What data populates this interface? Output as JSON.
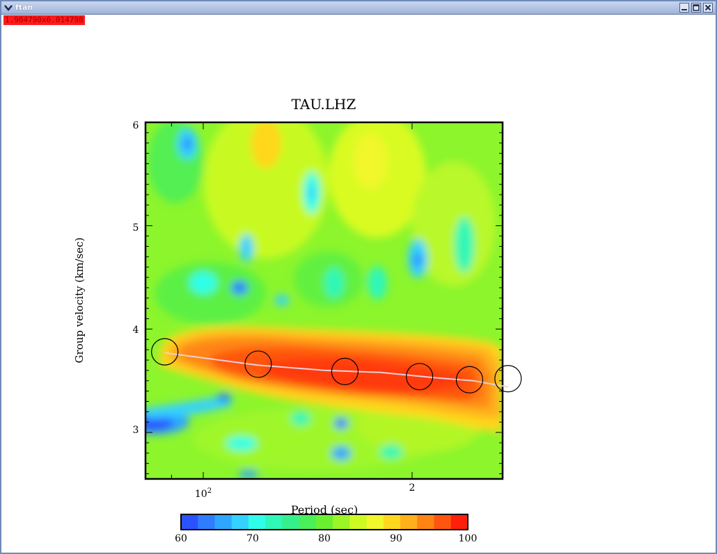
{
  "window": {
    "title": "ftan"
  },
  "coord_readout": "1.904790x6.014798",
  "chart_data": {
    "type": "heatmap",
    "title": "TAU.LHZ",
    "xlabel": "Period (sec)",
    "ylabel": "Group velocity (km/sec)",
    "x_scale": "log",
    "x_tick_labels": [
      "10",
      "2"
    ],
    "x_tick_superscripts": [
      "2",
      ""
    ],
    "y_tick_labels": [
      "3",
      "4",
      "5",
      "6"
    ],
    "ylim": [
      2.55,
      6.0
    ],
    "colorbar": {
      "ticks": [
        "60",
        "70",
        "80",
        "90",
        "100"
      ],
      "range": [
        60,
        100
      ],
      "colors": [
        "#2a52ff",
        "#2f7cff",
        "#2ea6ff",
        "#35d2ff",
        "#2fffe8",
        "#2ef7b8",
        "#35f08a",
        "#4af05a",
        "#6bf031",
        "#9bf527",
        "#cdfa23",
        "#f1f72a",
        "#ffd71e",
        "#ffb01a",
        "#ff8414",
        "#ff560f",
        "#ff1f0a"
      ]
    },
    "dispersion_curve": [
      {
        "x": 88,
        "v": 3.77
      },
      {
        "x": 120,
        "v": 3.65
      },
      {
        "x": 150,
        "v": 3.6
      },
      {
        "x": 180,
        "v": 3.58
      },
      {
        "x": 215,
        "v": 3.53
      },
      {
        "x": 245,
        "v": 3.5
      },
      {
        "x": 275,
        "v": 3.44
      }
    ],
    "circle_markers": [
      {
        "x": 88,
        "v": 3.78
      },
      {
        "x": 120,
        "v": 3.66
      },
      {
        "x": 160,
        "v": 3.59
      },
      {
        "x": 205,
        "v": 3.54
      },
      {
        "x": 242,
        "v": 3.51
      },
      {
        "x": 275,
        "v": 3.52
      }
    ]
  }
}
